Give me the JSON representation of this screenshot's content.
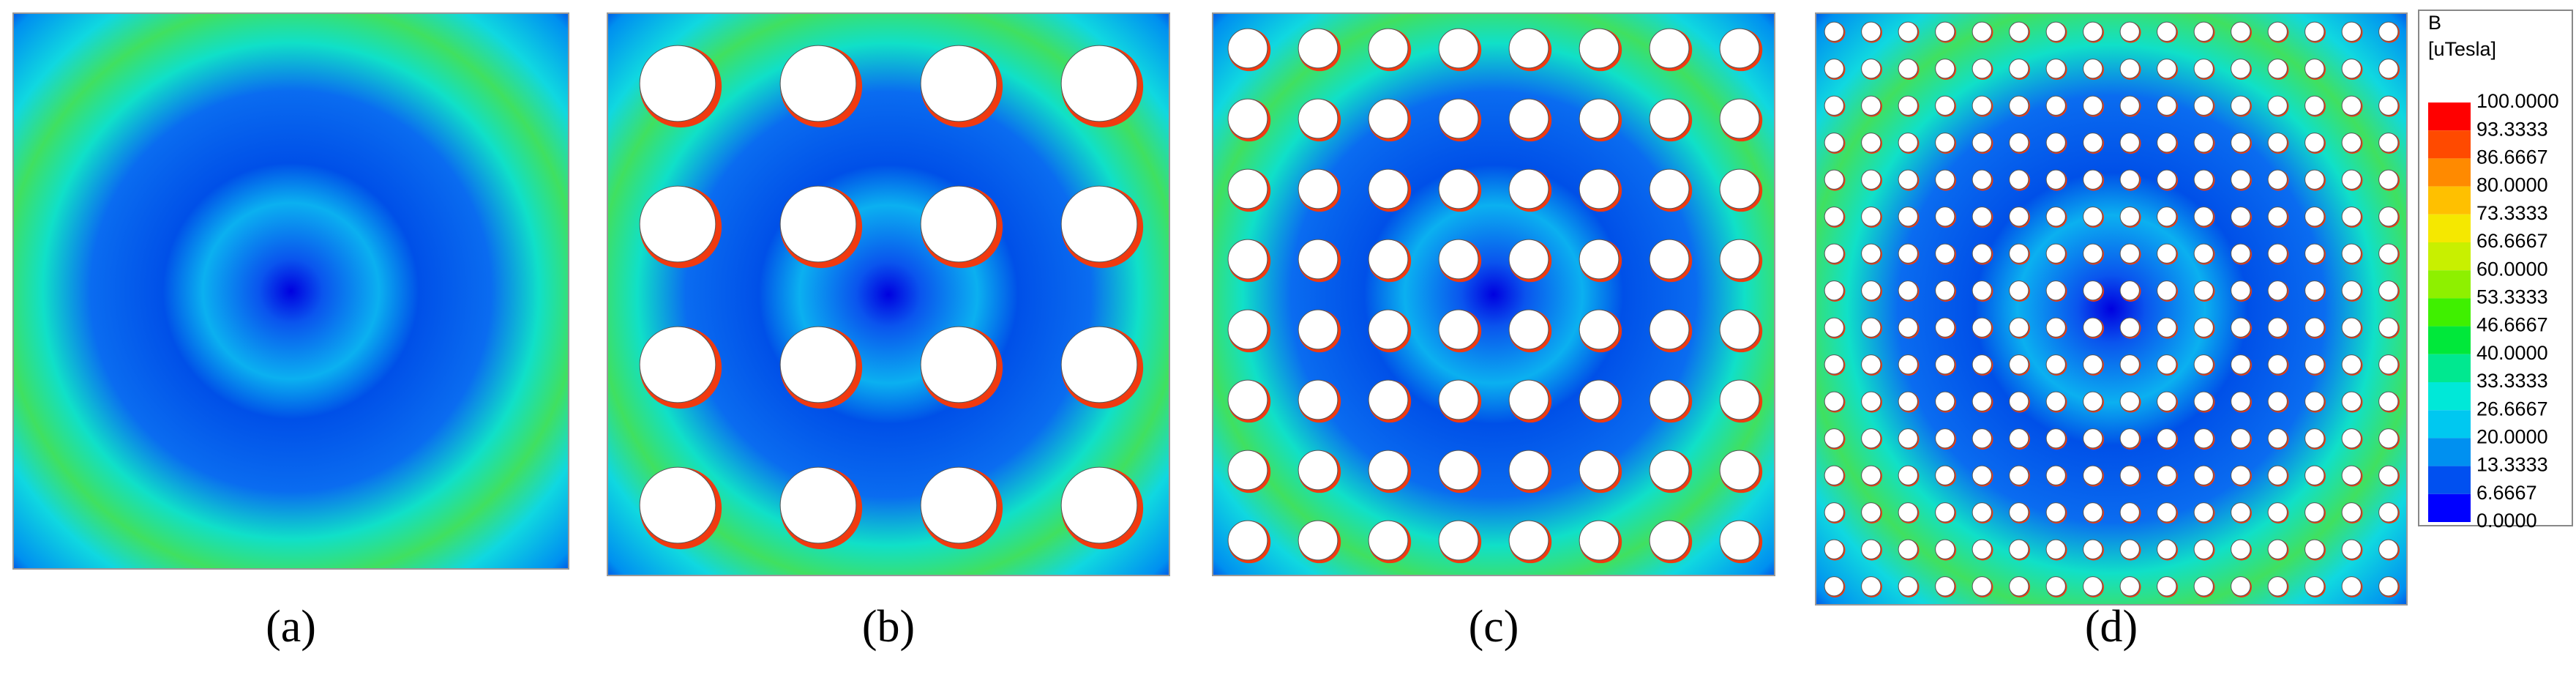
{
  "panels": [
    {
      "label": "(a)"
    },
    {
      "label": "(b)"
    },
    {
      "label": "(c)"
    },
    {
      "label": "(d)"
    }
  ],
  "colorbar": {
    "quantity": "B",
    "unit": "[uTesla]",
    "ticks": [
      "100.0000",
      "93.3333",
      "86.6667",
      "80.0000",
      "73.3333",
      "66.6667",
      "60.0000",
      "53.3333",
      "46.6667",
      "40.0000",
      "33.3333",
      "26.6667",
      "20.0000",
      "13.3333",
      "6.6667",
      "0.0000"
    ],
    "colors": [
      "#ff0000",
      "#ff4a00",
      "#ff8a00",
      "#ffc000",
      "#f5e800",
      "#c8f000",
      "#8ef000",
      "#3ff000",
      "#00e83a",
      "#00e890",
      "#00e8d8",
      "#00c8f0",
      "#0090f0",
      "#0050f0",
      "#0000ff"
    ]
  }
}
